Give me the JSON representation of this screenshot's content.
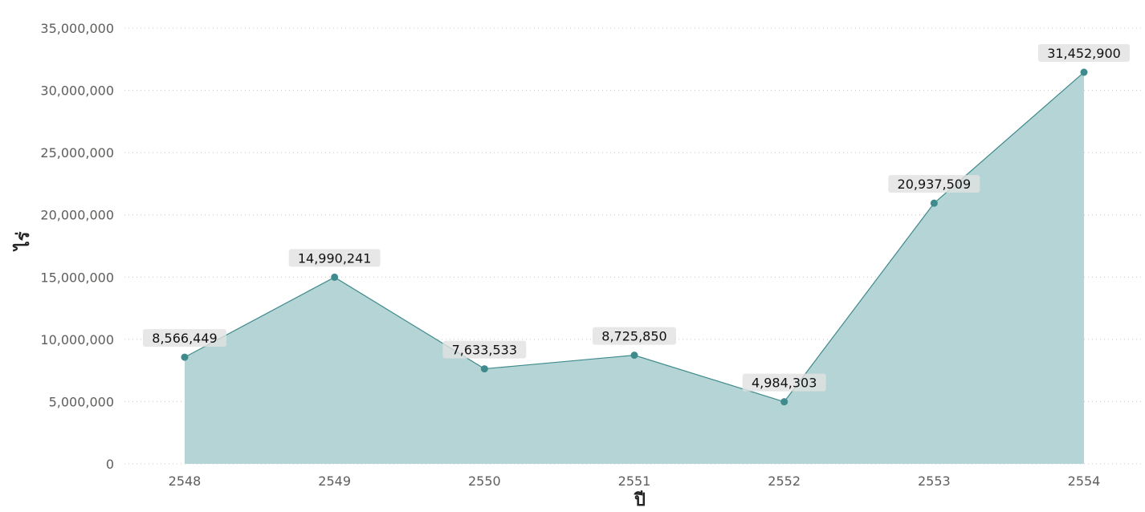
{
  "chart_data": {
    "type": "area",
    "title": "",
    "xlabel": "ปี",
    "ylabel": "ไร่",
    "categories": [
      "2548",
      "2549",
      "2550",
      "2551",
      "2552",
      "2553",
      "2554"
    ],
    "values": [
      8566449,
      14990241,
      7633533,
      8725850,
      4984303,
      20937509,
      31452900
    ],
    "data_labels": [
      "8,566,449",
      "14,990,241",
      "7,633,533",
      "8,725,850",
      "4,984,303",
      "20,937,509",
      "31,452,900"
    ],
    "yticks": [
      0,
      5000000,
      10000000,
      15000000,
      20000000,
      25000000,
      30000000,
      35000000
    ],
    "ytick_labels": [
      "0",
      "5,000,000",
      "10,000,000",
      "15,000,000",
      "20,000,000",
      "25,000,000",
      "30,000,000",
      "35,000,000"
    ],
    "ylim": [
      0,
      35000000
    ],
    "grid": true,
    "colors": {
      "line": "#3f8a8c",
      "fill": "#b4d4d5",
      "marker": "#3f8a8c",
      "label_bg": "#e1e1e1"
    }
  }
}
